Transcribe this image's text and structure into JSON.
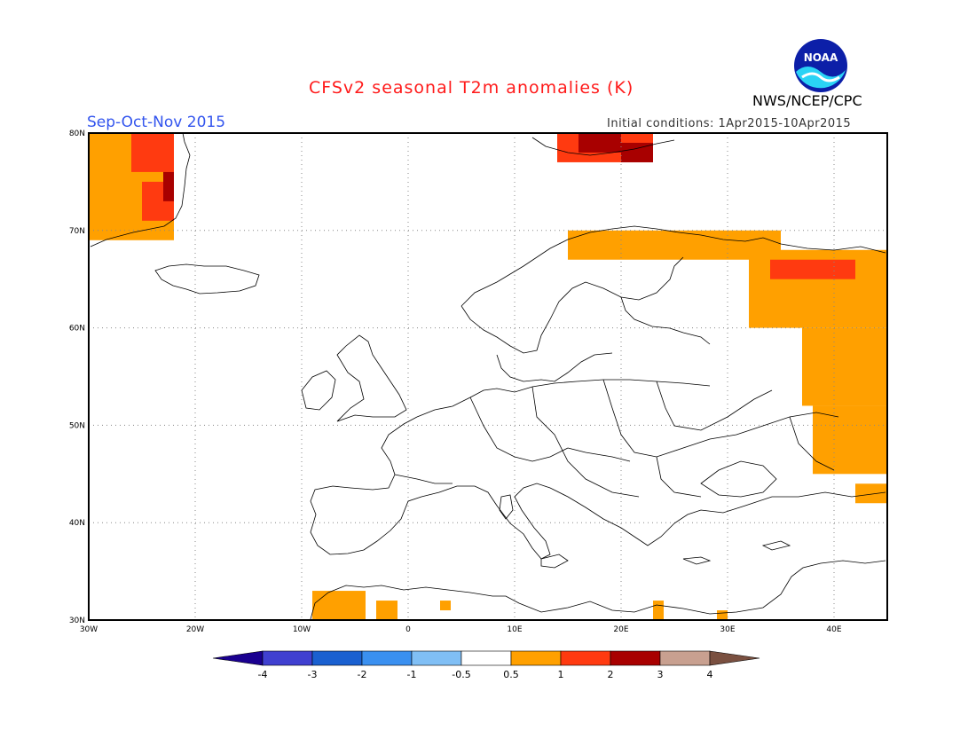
{
  "header": {
    "title": "CFSv2 seasonal T2m anomalies (K)",
    "season": "Sep-Oct-Nov 2015",
    "initial_conditions": "Initial conditions: 1Apr2015-10Apr2015",
    "organization": "NWS/NCEP/CPC",
    "logo_text": "NOAA"
  },
  "map": {
    "lon_range": [
      -30,
      45
    ],
    "lat_range": [
      30,
      80
    ],
    "lat_labels": [
      "30N",
      "40N",
      "50N",
      "60N",
      "70N",
      "80N"
    ],
    "lon_labels": [
      "30W",
      "20W",
      "10W",
      "0",
      "10E",
      "20E",
      "30E",
      "40E"
    ],
    "colors": {
      "c05_1": "#ffa000",
      "c1_2": "#ff3a10",
      "c2_3": "#a80000"
    },
    "anomaly_regions": [
      {
        "level": "0.5-1",
        "cells": [
          [
            -30,
            69,
            -22,
            80
          ]
        ]
      },
      {
        "level": "1-2",
        "cells": [
          [
            -26,
            76,
            -22,
            80
          ],
          [
            -25,
            71,
            -22,
            75
          ]
        ]
      },
      {
        "level": "2-3",
        "cells": [
          [
            -23,
            73,
            -22,
            76
          ]
        ]
      },
      {
        "level": "1-2",
        "cells": [
          [
            14,
            77,
            23,
            80
          ]
        ]
      },
      {
        "level": "2-3",
        "cells": [
          [
            16,
            78,
            20,
            80
          ],
          [
            20,
            77,
            23,
            79
          ]
        ]
      },
      {
        "level": "0.5-1",
        "cells": [
          [
            15,
            67,
            35,
            70
          ],
          [
            32,
            60,
            45,
            68
          ],
          [
            37,
            52,
            45,
            60
          ],
          [
            38,
            45,
            45,
            52
          ],
          [
            42,
            42,
            45,
            44
          ]
        ]
      },
      {
        "level": "1-2",
        "cells": [
          [
            34,
            65,
            42,
            67
          ]
        ]
      },
      {
        "level": "0.5-1",
        "cells": [
          [
            -9,
            30,
            -4,
            33
          ],
          [
            -3,
            30,
            -1,
            32
          ],
          [
            3,
            31,
            4,
            32
          ],
          [
            23,
            30,
            24,
            32
          ],
          [
            29,
            30,
            30,
            31
          ]
        ]
      }
    ]
  },
  "colorbar": {
    "tick_labels": [
      "-4",
      "-3",
      "-2",
      "-1",
      "-0.5",
      "0.5",
      "1",
      "2",
      "3",
      "4"
    ],
    "colors": [
      "#1a0090",
      "#4040d0",
      "#1a60d0",
      "#3a90f0",
      "#80bff5",
      "#ffffff",
      "#ffa000",
      "#ff3a10",
      "#a80000",
      "#c8a090",
      "#7a5040"
    ]
  }
}
